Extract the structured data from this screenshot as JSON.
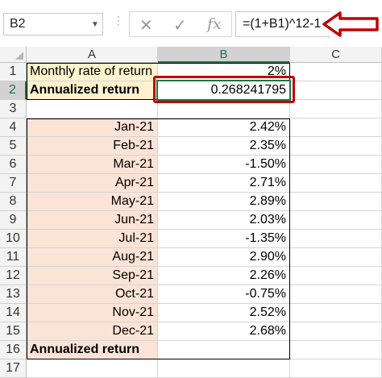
{
  "formula_bar": {
    "name_box": "B2",
    "formula": "=(1+B1)^12-1",
    "cancel_icon": "close-icon",
    "enter_icon": "check-icon",
    "fx_label": "fx"
  },
  "columns": [
    "A",
    "B",
    "C"
  ],
  "rows": [
    {
      "num": "1",
      "a": "Monthly rate of return",
      "b": "2%"
    },
    {
      "num": "2",
      "a": "Annualized return",
      "b": "0.268241795"
    },
    {
      "num": "3",
      "a": "",
      "b": ""
    },
    {
      "num": "4",
      "a": "Jan-21",
      "b": "2.42%"
    },
    {
      "num": "5",
      "a": "Feb-21",
      "b": "2.35%"
    },
    {
      "num": "6",
      "a": "Mar-21",
      "b": "-1.50%"
    },
    {
      "num": "7",
      "a": "Apr-21",
      "b": "2.71%"
    },
    {
      "num": "8",
      "a": "May-21",
      "b": "2.89%"
    },
    {
      "num": "9",
      "a": "Jun-21",
      "b": "2.03%"
    },
    {
      "num": "10",
      "a": "Jul-21",
      "b": "-1.35%"
    },
    {
      "num": "11",
      "a": "Aug-21",
      "b": "2.90%"
    },
    {
      "num": "12",
      "a": "Sep-21",
      "b": "2.26%"
    },
    {
      "num": "13",
      "a": "Oct-21",
      "b": "-0.75%"
    },
    {
      "num": "14",
      "a": "Nov-21",
      "b": "2.52%"
    },
    {
      "num": "15",
      "a": "Dec-21",
      "b": "2.68%"
    },
    {
      "num": "16",
      "a": "Annualized return",
      "b": ""
    },
    {
      "num": "17",
      "a": "",
      "b": ""
    }
  ],
  "colors": {
    "accent": "#217346",
    "highlight_border": "#c00000",
    "yellow_fill": "#fff2cc",
    "peach_fill": "#fbe3d6"
  }
}
